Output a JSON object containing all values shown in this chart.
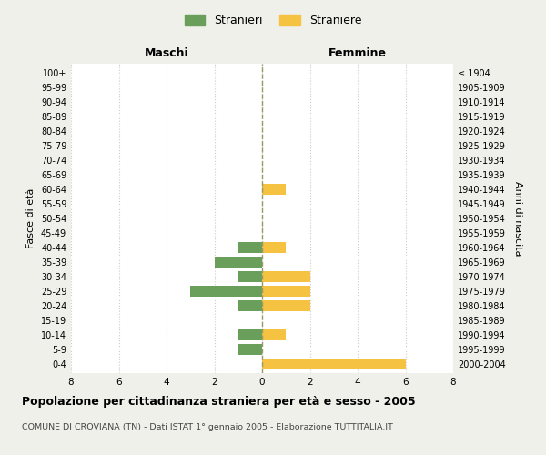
{
  "age_groups": [
    "0-4",
    "5-9",
    "10-14",
    "15-19",
    "20-24",
    "25-29",
    "30-34",
    "35-39",
    "40-44",
    "45-49",
    "50-54",
    "55-59",
    "60-64",
    "65-69",
    "70-74",
    "75-79",
    "80-84",
    "85-89",
    "90-94",
    "95-99",
    "100+"
  ],
  "birth_years": [
    "2000-2004",
    "1995-1999",
    "1990-1994",
    "1985-1989",
    "1980-1984",
    "1975-1979",
    "1970-1974",
    "1965-1969",
    "1960-1964",
    "1955-1959",
    "1950-1954",
    "1945-1949",
    "1940-1944",
    "1935-1939",
    "1930-1934",
    "1925-1929",
    "1920-1924",
    "1915-1919",
    "1910-1914",
    "1905-1909",
    "≤ 1904"
  ],
  "maschi": [
    0,
    1,
    1,
    0,
    1,
    3,
    1,
    2,
    1,
    0,
    0,
    0,
    0,
    0,
    0,
    0,
    0,
    0,
    0,
    0,
    0
  ],
  "femmine": [
    6,
    0,
    1,
    0,
    2,
    2,
    2,
    0,
    1,
    0,
    0,
    0,
    1,
    0,
    0,
    0,
    0,
    0,
    0,
    0,
    0
  ],
  "color_maschi": "#6a9f5b",
  "color_femmine": "#f5c242",
  "xlim": 8,
  "title": "Popolazione per cittadinanza straniera per età e sesso - 2005",
  "subtitle": "COMUNE DI CROVIANA (TN) - Dati ISTAT 1° gennaio 2005 - Elaborazione TUTTITALIA.IT",
  "ylabel_left": "Fasce di età",
  "ylabel_right": "Anni di nascita",
  "xlabel_left": "Maschi",
  "xlabel_right": "Femmine",
  "legend_stranieri": "Stranieri",
  "legend_straniere": "Straniere",
  "bg_color": "#f0f0eb",
  "plot_bg": "#ffffff",
  "grid_color": "#cccccc",
  "vline_color": "#999966"
}
